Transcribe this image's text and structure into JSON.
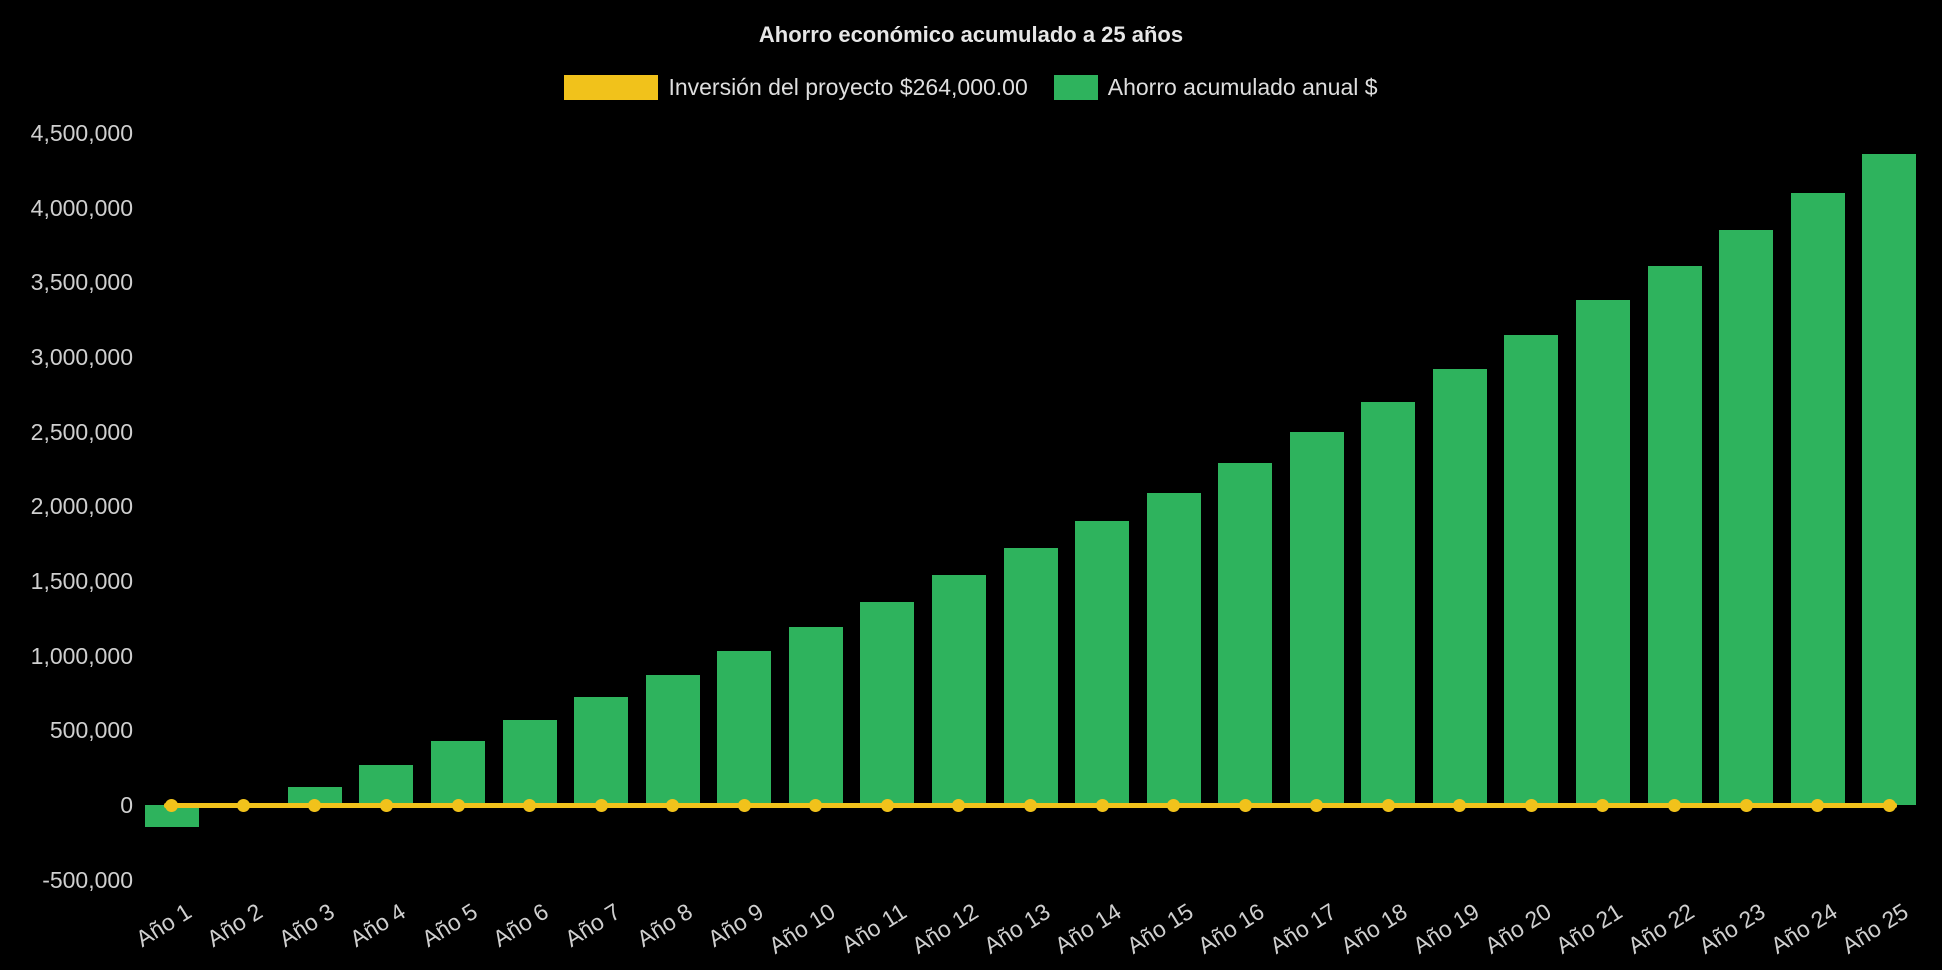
{
  "title": "Ahorro económico acumulado a 25 años",
  "legend": [
    {
      "label": "Inversión del proyecto $264,000.00",
      "color": "#f1c21b",
      "type": "line"
    },
    {
      "label": "Ahorro acumulado anual $",
      "color": "#2eb35d",
      "type": "bar"
    }
  ],
  "colors": {
    "background": "#000000",
    "axis_text": "#cfcfcf",
    "title_text": "#e6e6e6",
    "bar": "#2eb35d",
    "line": "#f1c21b"
  },
  "chart_data": {
    "type": "bar",
    "title": "Ahorro económico acumulado a 25 años",
    "categories": [
      "Año 1",
      "Año 2",
      "Año 3",
      "Año 4",
      "Año 5",
      "Año 6",
      "Año 7",
      "Año 8",
      "Año 9",
      "Año 10",
      "Año 11",
      "Año 12",
      "Año 13",
      "Año 14",
      "Año 15",
      "Año 16",
      "Año 17",
      "Año 18",
      "Año 19",
      "Año 20",
      "Año 21",
      "Año 22",
      "Año 23",
      "Año 24",
      "Año 25"
    ],
    "series": [
      {
        "name": "Ahorro acumulado anual $",
        "type": "bar",
        "color": "#2eb35d",
        "values": [
          -150000,
          10000,
          120000,
          270000,
          430000,
          570000,
          720000,
          870000,
          1030000,
          1190000,
          1360000,
          1540000,
          1720000,
          1900000,
          2090000,
          2290000,
          2500000,
          2700000,
          2920000,
          3150000,
          3380000,
          3610000,
          3850000,
          4100000,
          4360000
        ]
      },
      {
        "name": "Inversión del proyecto $264,000.00",
        "type": "line",
        "color": "#f1c21b",
        "values": [
          0,
          0,
          0,
          0,
          0,
          0,
          0,
          0,
          0,
          0,
          0,
          0,
          0,
          0,
          0,
          0,
          0,
          0,
          0,
          0,
          0,
          0,
          0,
          0,
          0
        ]
      }
    ],
    "ylim": [
      -500000,
      4500000
    ],
    "ytick_step": 500000,
    "ytick_labels": [
      "4,500,000",
      "4,000,000",
      "3,500,000",
      "3,000,000",
      "2,500,000",
      "2,000,000",
      "1,500,000",
      "1,000,000",
      "500,000",
      "0",
      "-500,000"
    ],
    "grid": false,
    "legend_position": "top",
    "xlabel": "",
    "ylabel": ""
  }
}
